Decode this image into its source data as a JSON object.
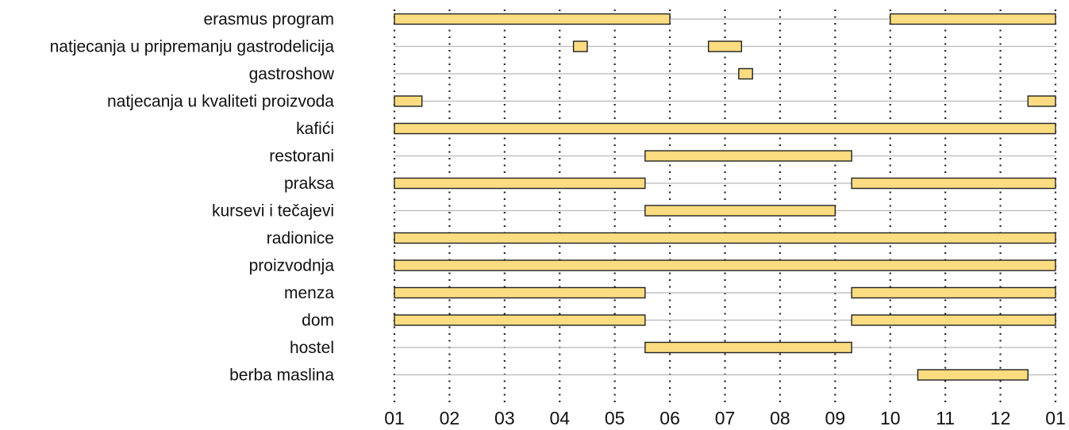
{
  "chart_data": {
    "type": "gantt",
    "title": "",
    "xlabel": "",
    "ylabel": "",
    "x_ticks": [
      "01",
      "02",
      "03",
      "04",
      "05",
      "06",
      "07",
      "08",
      "09",
      "10",
      "11",
      "12",
      "01"
    ],
    "xlim": [
      0,
      12
    ],
    "grid": {
      "vertical": "dotted",
      "horizontal_row_lines": true
    },
    "legend": "none",
    "colors": {
      "bar_fill": "#fbdc80",
      "bar_stroke": "#222222",
      "row_line": "#b8b8b8",
      "grid": "#222222"
    },
    "rows": [
      {
        "label": "erasmus program",
        "spans": [
          [
            0,
            5
          ],
          [
            9,
            12
          ]
        ]
      },
      {
        "label": "natjecanja u pripremanju gastrodelicija",
        "spans": [
          [
            3.25,
            3.5
          ],
          [
            5.7,
            6.3
          ]
        ]
      },
      {
        "label": "gastroshow",
        "spans": [
          [
            6.25,
            6.5
          ]
        ]
      },
      {
        "label": "natjecanja u kvaliteti proizvoda",
        "spans": [
          [
            0,
            0.5
          ],
          [
            11.5,
            12
          ]
        ]
      },
      {
        "label": "kafići",
        "spans": [
          [
            0,
            12
          ]
        ]
      },
      {
        "label": "restorani",
        "spans": [
          [
            4.55,
            8.3
          ]
        ]
      },
      {
        "label": "praksa",
        "spans": [
          [
            0,
            4.55
          ],
          [
            8.3,
            12
          ]
        ]
      },
      {
        "label": "kursevi i tečajevi",
        "spans": [
          [
            4.55,
            8.0
          ]
        ]
      },
      {
        "label": "radionice",
        "spans": [
          [
            0,
            12
          ]
        ]
      },
      {
        "label": "proizvodnja",
        "spans": [
          [
            0,
            12
          ]
        ]
      },
      {
        "label": "menza",
        "spans": [
          [
            0,
            4.55
          ],
          [
            8.3,
            12
          ]
        ]
      },
      {
        "label": "dom",
        "spans": [
          [
            0,
            4.55
          ],
          [
            8.3,
            12
          ]
        ]
      },
      {
        "label": "hostel",
        "spans": [
          [
            4.55,
            8.3
          ]
        ]
      },
      {
        "label": "berba maslina",
        "spans": [
          [
            9.5,
            11.5
          ]
        ]
      }
    ]
  }
}
